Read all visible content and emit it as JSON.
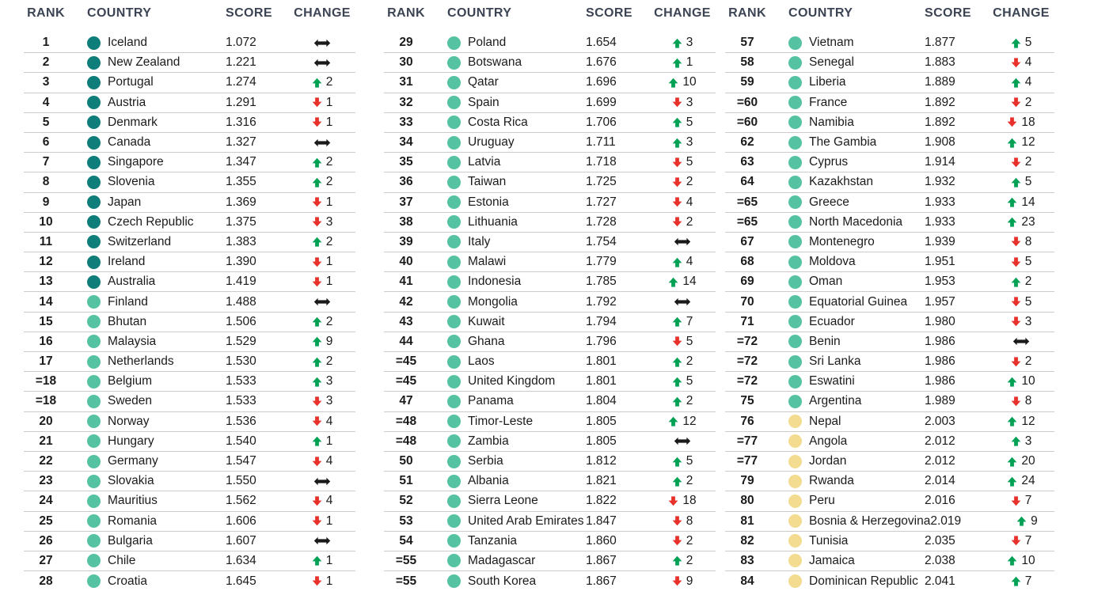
{
  "palette": {
    "tier_dark": "#0f7d79",
    "tier_medium": "#55c3a2",
    "tier_yellow": "#f3dc90",
    "arrow_up": "#00a155",
    "arrow_down": "#e8312b",
    "arrow_same": "#1a1a1a",
    "header_text": "#3c4454",
    "separator": "#cbcbcb"
  },
  "headers": {
    "rank": "RANK",
    "country": "COUNTRY",
    "score": "SCORE",
    "change": "CHANGE"
  },
  "tables": [
    {
      "rows": [
        {
          "rank": "1",
          "country": "Iceland",
          "score": "1.072",
          "dir": "same",
          "delta": "",
          "tier": "dark"
        },
        {
          "rank": "2",
          "country": "New Zealand",
          "score": "1.221",
          "dir": "same",
          "delta": "",
          "tier": "dark"
        },
        {
          "rank": "3",
          "country": "Portugal",
          "score": "1.274",
          "dir": "up",
          "delta": "2",
          "tier": "dark"
        },
        {
          "rank": "4",
          "country": "Austria",
          "score": "1.291",
          "dir": "down",
          "delta": "1",
          "tier": "dark"
        },
        {
          "rank": "5",
          "country": "Denmark",
          "score": "1.316",
          "dir": "down",
          "delta": "1",
          "tier": "dark"
        },
        {
          "rank": "6",
          "country": "Canada",
          "score": "1.327",
          "dir": "same",
          "delta": "",
          "tier": "dark"
        },
        {
          "rank": "7",
          "country": "Singapore",
          "score": "1.347",
          "dir": "up",
          "delta": "2",
          "tier": "dark"
        },
        {
          "rank": "8",
          "country": "Slovenia",
          "score": "1.355",
          "dir": "up",
          "delta": "2",
          "tier": "dark"
        },
        {
          "rank": "9",
          "country": "Japan",
          "score": "1.369",
          "dir": "down",
          "delta": "1",
          "tier": "dark"
        },
        {
          "rank": "10",
          "country": "Czech Republic",
          "score": "1.375",
          "dir": "down",
          "delta": "3",
          "tier": "dark"
        },
        {
          "rank": "11",
          "country": "Switzerland",
          "score": "1.383",
          "dir": "up",
          "delta": "2",
          "tier": "dark"
        },
        {
          "rank": "12",
          "country": "Ireland",
          "score": "1.390",
          "dir": "down",
          "delta": "1",
          "tier": "dark"
        },
        {
          "rank": "13",
          "country": "Australia",
          "score": "1.419",
          "dir": "down",
          "delta": "1",
          "tier": "dark"
        },
        {
          "rank": "14",
          "country": "Finland",
          "score": "1.488",
          "dir": "same",
          "delta": "",
          "tier": "medium"
        },
        {
          "rank": "15",
          "country": "Bhutan",
          "score": "1.506",
          "dir": "up",
          "delta": "2",
          "tier": "medium"
        },
        {
          "rank": "16",
          "country": "Malaysia",
          "score": "1.529",
          "dir": "up",
          "delta": "9",
          "tier": "medium"
        },
        {
          "rank": "17",
          "country": "Netherlands",
          "score": "1.530",
          "dir": "up",
          "delta": "2",
          "tier": "medium"
        },
        {
          "rank": "=18",
          "country": "Belgium",
          "score": "1.533",
          "dir": "up",
          "delta": "3",
          "tier": "medium"
        },
        {
          "rank": "=18",
          "country": "Sweden",
          "score": "1.533",
          "dir": "down",
          "delta": "3",
          "tier": "medium"
        },
        {
          "rank": "20",
          "country": "Norway",
          "score": "1.536",
          "dir": "down",
          "delta": "4",
          "tier": "medium"
        },
        {
          "rank": "21",
          "country": "Hungary",
          "score": "1.540",
          "dir": "up",
          "delta": "1",
          "tier": "medium"
        },
        {
          "rank": "22",
          "country": "Germany",
          "score": "1.547",
          "dir": "down",
          "delta": "4",
          "tier": "medium"
        },
        {
          "rank": "23",
          "country": "Slovakia",
          "score": "1.550",
          "dir": "same",
          "delta": "",
          "tier": "medium"
        },
        {
          "rank": "24",
          "country": "Mauritius",
          "score": "1.562",
          "dir": "down",
          "delta": "4",
          "tier": "medium"
        },
        {
          "rank": "25",
          "country": "Romania",
          "score": "1.606",
          "dir": "down",
          "delta": "1",
          "tier": "medium"
        },
        {
          "rank": "26",
          "country": "Bulgaria",
          "score": "1.607",
          "dir": "same",
          "delta": "",
          "tier": "medium"
        },
        {
          "rank": "27",
          "country": "Chile",
          "score": "1.634",
          "dir": "up",
          "delta": "1",
          "tier": "medium"
        },
        {
          "rank": "28",
          "country": "Croatia",
          "score": "1.645",
          "dir": "down",
          "delta": "1",
          "tier": "medium"
        }
      ]
    },
    {
      "rows": [
        {
          "rank": "29",
          "country": "Poland",
          "score": "1.654",
          "dir": "up",
          "delta": "3",
          "tier": "medium"
        },
        {
          "rank": "30",
          "country": "Botswana",
          "score": "1.676",
          "dir": "up",
          "delta": "1",
          "tier": "medium"
        },
        {
          "rank": "31",
          "country": "Qatar",
          "score": "1.696",
          "dir": "up",
          "delta": "10",
          "tier": "medium"
        },
        {
          "rank": "32",
          "country": "Spain",
          "score": "1.699",
          "dir": "down",
          "delta": "3",
          "tier": "medium"
        },
        {
          "rank": "33",
          "country": "Costa Rica",
          "score": "1.706",
          "dir": "up",
          "delta": "5",
          "tier": "medium"
        },
        {
          "rank": "34",
          "country": "Uruguay",
          "score": "1.711",
          "dir": "up",
          "delta": "3",
          "tier": "medium"
        },
        {
          "rank": "35",
          "country": "Latvia",
          "score": "1.718",
          "dir": "down",
          "delta": "5",
          "tier": "medium"
        },
        {
          "rank": "36",
          "country": "Taiwan",
          "score": "1.725",
          "dir": "down",
          "delta": "2",
          "tier": "medium"
        },
        {
          "rank": "37",
          "country": "Estonia",
          "score": "1.727",
          "dir": "down",
          "delta": "4",
          "tier": "medium"
        },
        {
          "rank": "38",
          "country": "Lithuania",
          "score": "1.728",
          "dir": "down",
          "delta": "2",
          "tier": "medium"
        },
        {
          "rank": "39",
          "country": "Italy",
          "score": "1.754",
          "dir": "same",
          "delta": "",
          "tier": "medium"
        },
        {
          "rank": "40",
          "country": "Malawi",
          "score": "1.779",
          "dir": "up",
          "delta": "4",
          "tier": "medium"
        },
        {
          "rank": "41",
          "country": "Indonesia",
          "score": "1.785",
          "dir": "up",
          "delta": "14",
          "tier": "medium"
        },
        {
          "rank": "42",
          "country": "Mongolia",
          "score": "1.792",
          "dir": "same",
          "delta": "",
          "tier": "medium"
        },
        {
          "rank": "43",
          "country": "Kuwait",
          "score": "1.794",
          "dir": "up",
          "delta": "7",
          "tier": "medium"
        },
        {
          "rank": "44",
          "country": "Ghana",
          "score": "1.796",
          "dir": "down",
          "delta": "5",
          "tier": "medium"
        },
        {
          "rank": "=45",
          "country": "Laos",
          "score": "1.801",
          "dir": "up",
          "delta": "2",
          "tier": "medium"
        },
        {
          "rank": "=45",
          "country": "United Kingdom",
          "score": "1.801",
          "dir": "up",
          "delta": "5",
          "tier": "medium"
        },
        {
          "rank": "47",
          "country": "Panama",
          "score": "1.804",
          "dir": "up",
          "delta": "2",
          "tier": "medium"
        },
        {
          "rank": "=48",
          "country": "Timor-Leste",
          "score": "1.805",
          "dir": "up",
          "delta": "12",
          "tier": "medium"
        },
        {
          "rank": "=48",
          "country": "Zambia",
          "score": "1.805",
          "dir": "same",
          "delta": "",
          "tier": "medium"
        },
        {
          "rank": "50",
          "country": "Serbia",
          "score": "1.812",
          "dir": "up",
          "delta": "5",
          "tier": "medium"
        },
        {
          "rank": "51",
          "country": "Albania",
          "score": "1.821",
          "dir": "up",
          "delta": "2",
          "tier": "medium"
        },
        {
          "rank": "52",
          "country": "Sierra Leone",
          "score": "1.822",
          "dir": "down",
          "delta": "18",
          "tier": "medium"
        },
        {
          "rank": "53",
          "country": "United Arab Emirates",
          "score": "1.847",
          "dir": "down",
          "delta": "8",
          "tier": "medium"
        },
        {
          "rank": "54",
          "country": "Tanzania",
          "score": "1.860",
          "dir": "down",
          "delta": "2",
          "tier": "medium"
        },
        {
          "rank": "=55",
          "country": "Madagascar",
          "score": "1.867",
          "dir": "up",
          "delta": "2",
          "tier": "medium"
        },
        {
          "rank": "=55",
          "country": "South Korea",
          "score": "1.867",
          "dir": "down",
          "delta": "9",
          "tier": "medium"
        }
      ]
    },
    {
      "rows": [
        {
          "rank": "57",
          "country": "Vietnam",
          "score": "1.877",
          "dir": "up",
          "delta": "5",
          "tier": "medium"
        },
        {
          "rank": "58",
          "country": "Senegal",
          "score": "1.883",
          "dir": "down",
          "delta": "4",
          "tier": "medium"
        },
        {
          "rank": "59",
          "country": "Liberia",
          "score": "1.889",
          "dir": "up",
          "delta": "4",
          "tier": "medium"
        },
        {
          "rank": "=60",
          "country": "France",
          "score": "1.892",
          "dir": "down",
          "delta": "2",
          "tier": "medium"
        },
        {
          "rank": "=60",
          "country": "Namibia",
          "score": "1.892",
          "dir": "down",
          "delta": "18",
          "tier": "medium"
        },
        {
          "rank": "62",
          "country": "The Gambia",
          "score": "1.908",
          "dir": "up",
          "delta": "12",
          "tier": "medium"
        },
        {
          "rank": "63",
          "country": "Cyprus",
          "score": "1.914",
          "dir": "down",
          "delta": "2",
          "tier": "medium"
        },
        {
          "rank": "64",
          "country": "Kazakhstan",
          "score": "1.932",
          "dir": "up",
          "delta": "5",
          "tier": "medium"
        },
        {
          "rank": "=65",
          "country": "Greece",
          "score": "1.933",
          "dir": "up",
          "delta": "14",
          "tier": "medium"
        },
        {
          "rank": "=65",
          "country": "North Macedonia",
          "score": "1.933",
          "dir": "up",
          "delta": "23",
          "tier": "medium"
        },
        {
          "rank": "67",
          "country": "Montenegro",
          "score": "1.939",
          "dir": "down",
          "delta": "8",
          "tier": "medium"
        },
        {
          "rank": "68",
          "country": "Moldova",
          "score": "1.951",
          "dir": "down",
          "delta": "5",
          "tier": "medium"
        },
        {
          "rank": "69",
          "country": "Oman",
          "score": "1.953",
          "dir": "up",
          "delta": "2",
          "tier": "medium"
        },
        {
          "rank": "70",
          "country": "Equatorial Guinea",
          "score": "1.957",
          "dir": "down",
          "delta": "5",
          "tier": "medium"
        },
        {
          "rank": "71",
          "country": "Ecuador",
          "score": "1.980",
          "dir": "down",
          "delta": "3",
          "tier": "medium"
        },
        {
          "rank": "=72",
          "country": "Benin",
          "score": "1.986",
          "dir": "same",
          "delta": "",
          "tier": "medium"
        },
        {
          "rank": "=72",
          "country": "Sri Lanka",
          "score": "1.986",
          "dir": "down",
          "delta": "2",
          "tier": "medium"
        },
        {
          "rank": "=72",
          "country": "Eswatini",
          "score": "1.986",
          "dir": "up",
          "delta": "10",
          "tier": "medium"
        },
        {
          "rank": "75",
          "country": "Argentina",
          "score": "1.989",
          "dir": "down",
          "delta": "8",
          "tier": "medium"
        },
        {
          "rank": "76",
          "country": "Nepal",
          "score": "2.003",
          "dir": "up",
          "delta": "12",
          "tier": "yellow"
        },
        {
          "rank": "=77",
          "country": "Angola",
          "score": "2.012",
          "dir": "up",
          "delta": "3",
          "tier": "yellow"
        },
        {
          "rank": "=77",
          "country": "Jordan",
          "score": "2.012",
          "dir": "up",
          "delta": "20",
          "tier": "yellow"
        },
        {
          "rank": "79",
          "country": "Rwanda",
          "score": "2.014",
          "dir": "up",
          "delta": "24",
          "tier": "yellow"
        },
        {
          "rank": "80",
          "country": "Peru",
          "score": "2.016",
          "dir": "down",
          "delta": "7",
          "tier": "yellow"
        },
        {
          "rank": "81",
          "country": "Bosnia & Herzegovina",
          "score": "2.019",
          "dir": "up",
          "delta": "9",
          "tier": "yellow"
        },
        {
          "rank": "82",
          "country": "Tunisia",
          "score": "2.035",
          "dir": "down",
          "delta": "7",
          "tier": "yellow"
        },
        {
          "rank": "83",
          "country": "Jamaica",
          "score": "2.038",
          "dir": "up",
          "delta": "10",
          "tier": "yellow"
        },
        {
          "rank": "84",
          "country": "Dominican Republic",
          "score": "2.041",
          "dir": "up",
          "delta": "7",
          "tier": "yellow"
        }
      ]
    }
  ]
}
